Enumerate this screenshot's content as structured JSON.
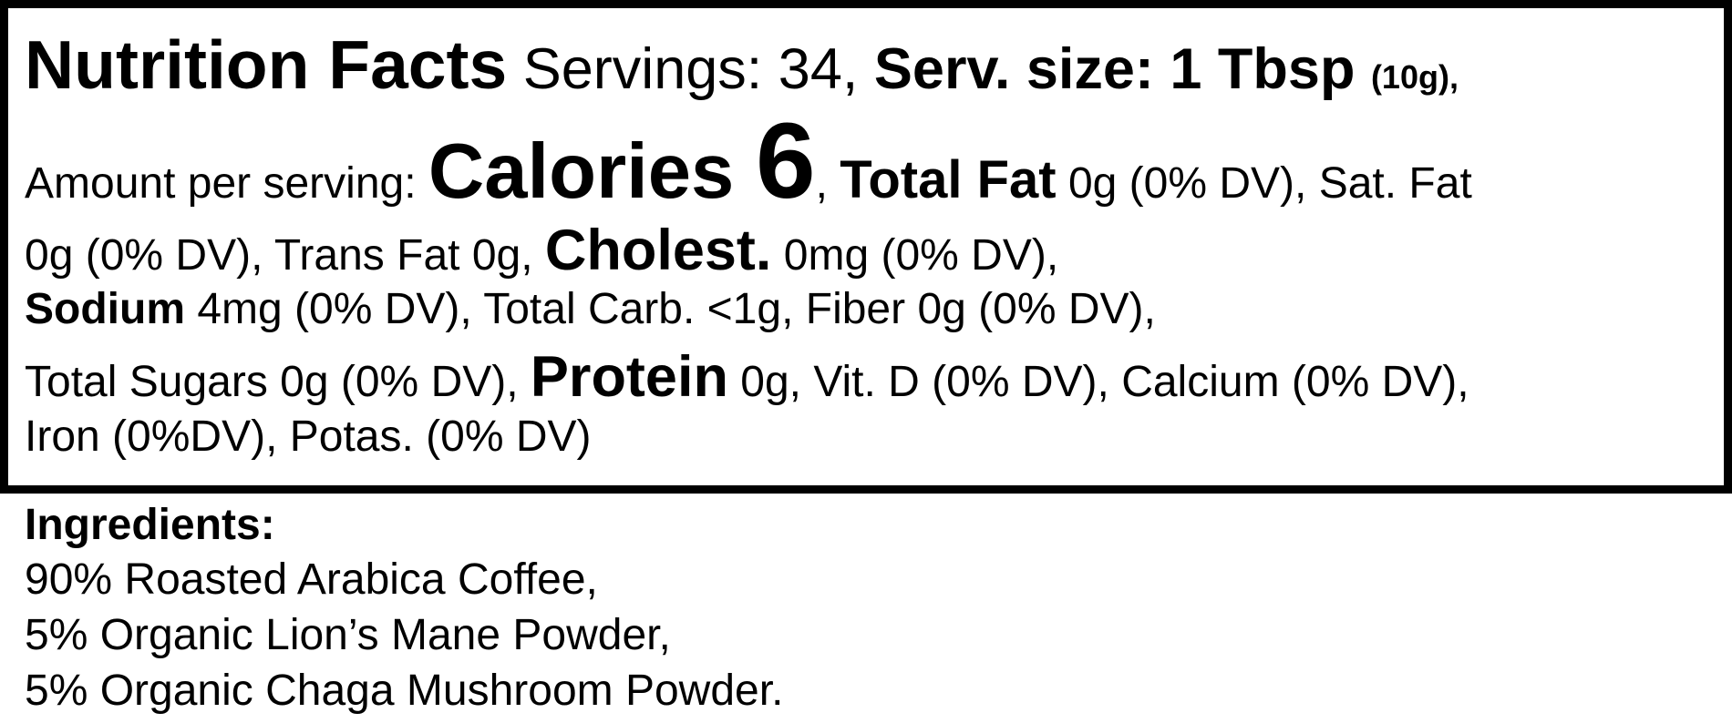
{
  "facts": {
    "line1": {
      "title": "Nutrition Facts",
      "servings": " Servings: 34, ",
      "serv_size": "Serv. size: 1 Tbsp ",
      "serv_grams": "(10g),"
    },
    "line2": {
      "amount": "Amount per serving: ",
      "calories_label": "Calories ",
      "calories_value": "6",
      "comma": ", ",
      "total_fat_label": "Total Fat",
      "total_fat_value": " 0g (0% DV), Sat. Fat"
    },
    "line3": {
      "sat_fat_value": "0g (0% DV), Trans Fat 0g, ",
      "cholest_label": "Cholest.",
      "cholest_value": " 0mg (0% DV),"
    },
    "line4": {
      "sodium_label": "Sodium",
      "sodium_value": " 4mg (0% DV), Total Carb. <1g, Fiber 0g (0% DV),"
    },
    "line5": {
      "sugars": "Total Sugars 0g (0% DV), ",
      "protein_label": "Protein",
      "protein_value": " 0g, Vit. D (0% DV), Calcium (0% DV),"
    },
    "line6": {
      "iron": "Iron (0%DV), Potas. (0% DV)"
    }
  },
  "ingredients": {
    "heading": "Ingredients:",
    "items": [
      "90% Roasted Arabica Coffee,",
      "5% Organic Lion’s Mane Powder,",
      "5% Organic Chaga Mushroom Powder."
    ]
  }
}
